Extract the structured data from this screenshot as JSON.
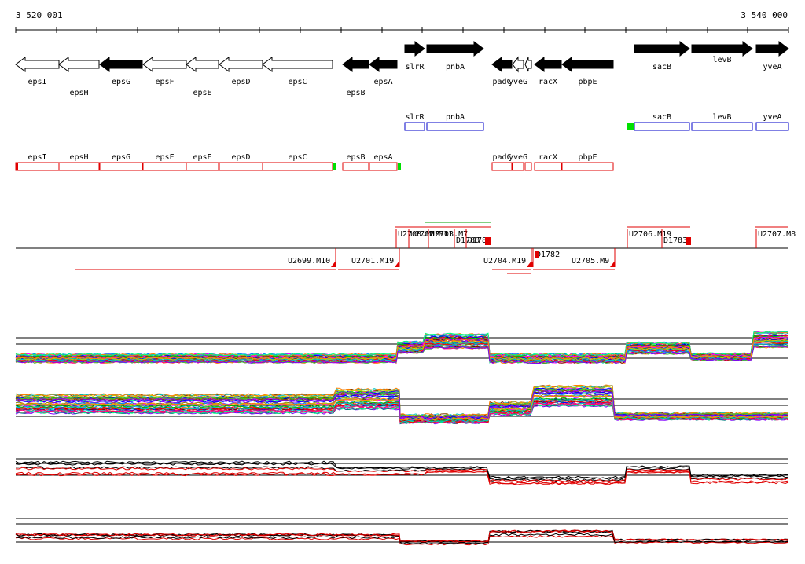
{
  "axis": {
    "start_label": "3 520 001",
    "end_label": "3 540 000"
  },
  "colors": {
    "gene_fill": "#000000",
    "annot_blue": "#0000c8",
    "annot_red": "#e00000",
    "tss_green": "#00e000",
    "marker_red": "#e00000"
  },
  "genes": [
    {
      "name": "epsI",
      "x1": 20,
      "x2": 75,
      "strand": "-",
      "filled": false,
      "label_row": 0
    },
    {
      "name": "epsH",
      "x1": 75,
      "x2": 126,
      "strand": "-",
      "filled": false,
      "label_row": 1
    },
    {
      "name": "epsG",
      "x1": 127,
      "x2": 181,
      "strand": "-",
      "filled": true,
      "label_row": 0
    },
    {
      "name": "epsF",
      "x1": 182,
      "x2": 237,
      "strand": "-",
      "filled": false,
      "label_row": 0
    },
    {
      "name": "epsE",
      "x1": 237,
      "x2": 278,
      "strand": "-",
      "filled": false,
      "label_row": 1
    },
    {
      "name": "epsD",
      "x1": 279,
      "x2": 334,
      "strand": "-",
      "filled": false,
      "label_row": 0
    },
    {
      "name": "epsC",
      "x1": 334,
      "x2": 423,
      "strand": "-",
      "filled": false,
      "label_row": 0
    },
    {
      "name": "epsB",
      "x1": 436,
      "x2": 469,
      "strand": "-",
      "filled": true,
      "label_row": 1
    },
    {
      "name": "epsA",
      "x1": 470,
      "x2": 505,
      "strand": "-",
      "filled": true,
      "label_row": 0
    },
    {
      "name": "slrR",
      "x1": 515,
      "x2": 540,
      "strand": "+",
      "filled": true,
      "label_row": 0
    },
    {
      "name": "pnbA",
      "x1": 543,
      "x2": 615,
      "strand": "+",
      "filled": true,
      "label_row": 0
    },
    {
      "name": "padC",
      "x1": 626,
      "x2": 651,
      "strand": "-",
      "filled": true,
      "label_row": 0
    },
    {
      "name": "yveG",
      "x1": 652,
      "x2": 666,
      "strand": "-",
      "filled": false,
      "label_row": 0
    },
    {
      "name": "",
      "x1": 668,
      "x2": 676,
      "strand": "-",
      "filled": false,
      "label_row": 0
    },
    {
      "name": "racX",
      "x1": 680,
      "x2": 714,
      "strand": "-",
      "filled": true,
      "label_row": 0
    },
    {
      "name": "pbpE",
      "x1": 715,
      "x2": 780,
      "strand": "-",
      "filled": true,
      "label_row": 0
    },
    {
      "name": "sacB",
      "x1": 807,
      "x2": 877,
      "strand": "+",
      "filled": true,
      "label_row": 0
    },
    {
      "name": "levB",
      "x1": 880,
      "x2": 957,
      "strand": "+",
      "filled": true,
      "label_row": 2
    },
    {
      "name": "yveA",
      "x1": 962,
      "x2": 1003,
      "strand": "+",
      "filled": true,
      "label_row": 0
    }
  ],
  "blue_annotations": [
    {
      "name": "slrR",
      "x1": 515,
      "x2": 540
    },
    {
      "name": "pnbA",
      "x1": 543,
      "x2": 615
    },
    {
      "name": "sacB",
      "x1": 807,
      "x2": 877
    },
    {
      "name": "levB",
      "x1": 880,
      "x2": 957
    },
    {
      "name": "yveA",
      "x1": 962,
      "x2": 1003
    }
  ],
  "blue_tss": [
    {
      "x": 798
    }
  ],
  "red_annotations": [
    {
      "name": "epsI",
      "x1": 20,
      "x2": 75
    },
    {
      "name": "epsH",
      "x1": 75,
      "x2": 126
    },
    {
      "name": "epsG",
      "x1": 127,
      "x2": 181
    },
    {
      "name": "epsF",
      "x1": 182,
      "x2": 237
    },
    {
      "name": "epsE",
      "x1": 237,
      "x2": 278
    },
    {
      "name": "epsD",
      "x1": 279,
      "x2": 334
    },
    {
      "name": "epsC",
      "x1": 334,
      "x2": 423
    },
    {
      "name": "epsB",
      "x1": 436,
      "x2": 469
    },
    {
      "name": "epsA",
      "x1": 470,
      "x2": 505
    },
    {
      "name": "padC",
      "x1": 626,
      "x2": 651
    },
    {
      "name": "yveG",
      "x1": 652,
      "x2": 666
    },
    {
      "name": "",
      "x1": 668,
      "x2": 676
    },
    {
      "name": "racX",
      "x1": 680,
      "x2": 714
    },
    {
      "name": "pbpE",
      "x1": 715,
      "x2": 780
    }
  ],
  "red_tss": [
    {
      "x": 424
    },
    {
      "x": 506
    }
  ],
  "upstream_labels": [
    "U2700.M19",
    "U2702.M11",
    "U2703.M7",
    "D1780",
    "D1781",
    "U2706.M19",
    "D1783",
    "U2707.M8",
    "U2699.M10",
    "U2701.M19",
    "U2704.M19",
    "D1782",
    "U2705.M9"
  ],
  "tracks": [
    {
      "name": "expression-profiles-set-1",
      "n_lines": 40,
      "colorful": true
    },
    {
      "name": "expression-profiles-set-2",
      "n_lines": 40,
      "colorful": true
    },
    {
      "name": "strand-plus-profiles",
      "n_lines": 6,
      "colorful": false
    },
    {
      "name": "strand-minus-profiles",
      "n_lines": 6,
      "colorful": false
    }
  ]
}
